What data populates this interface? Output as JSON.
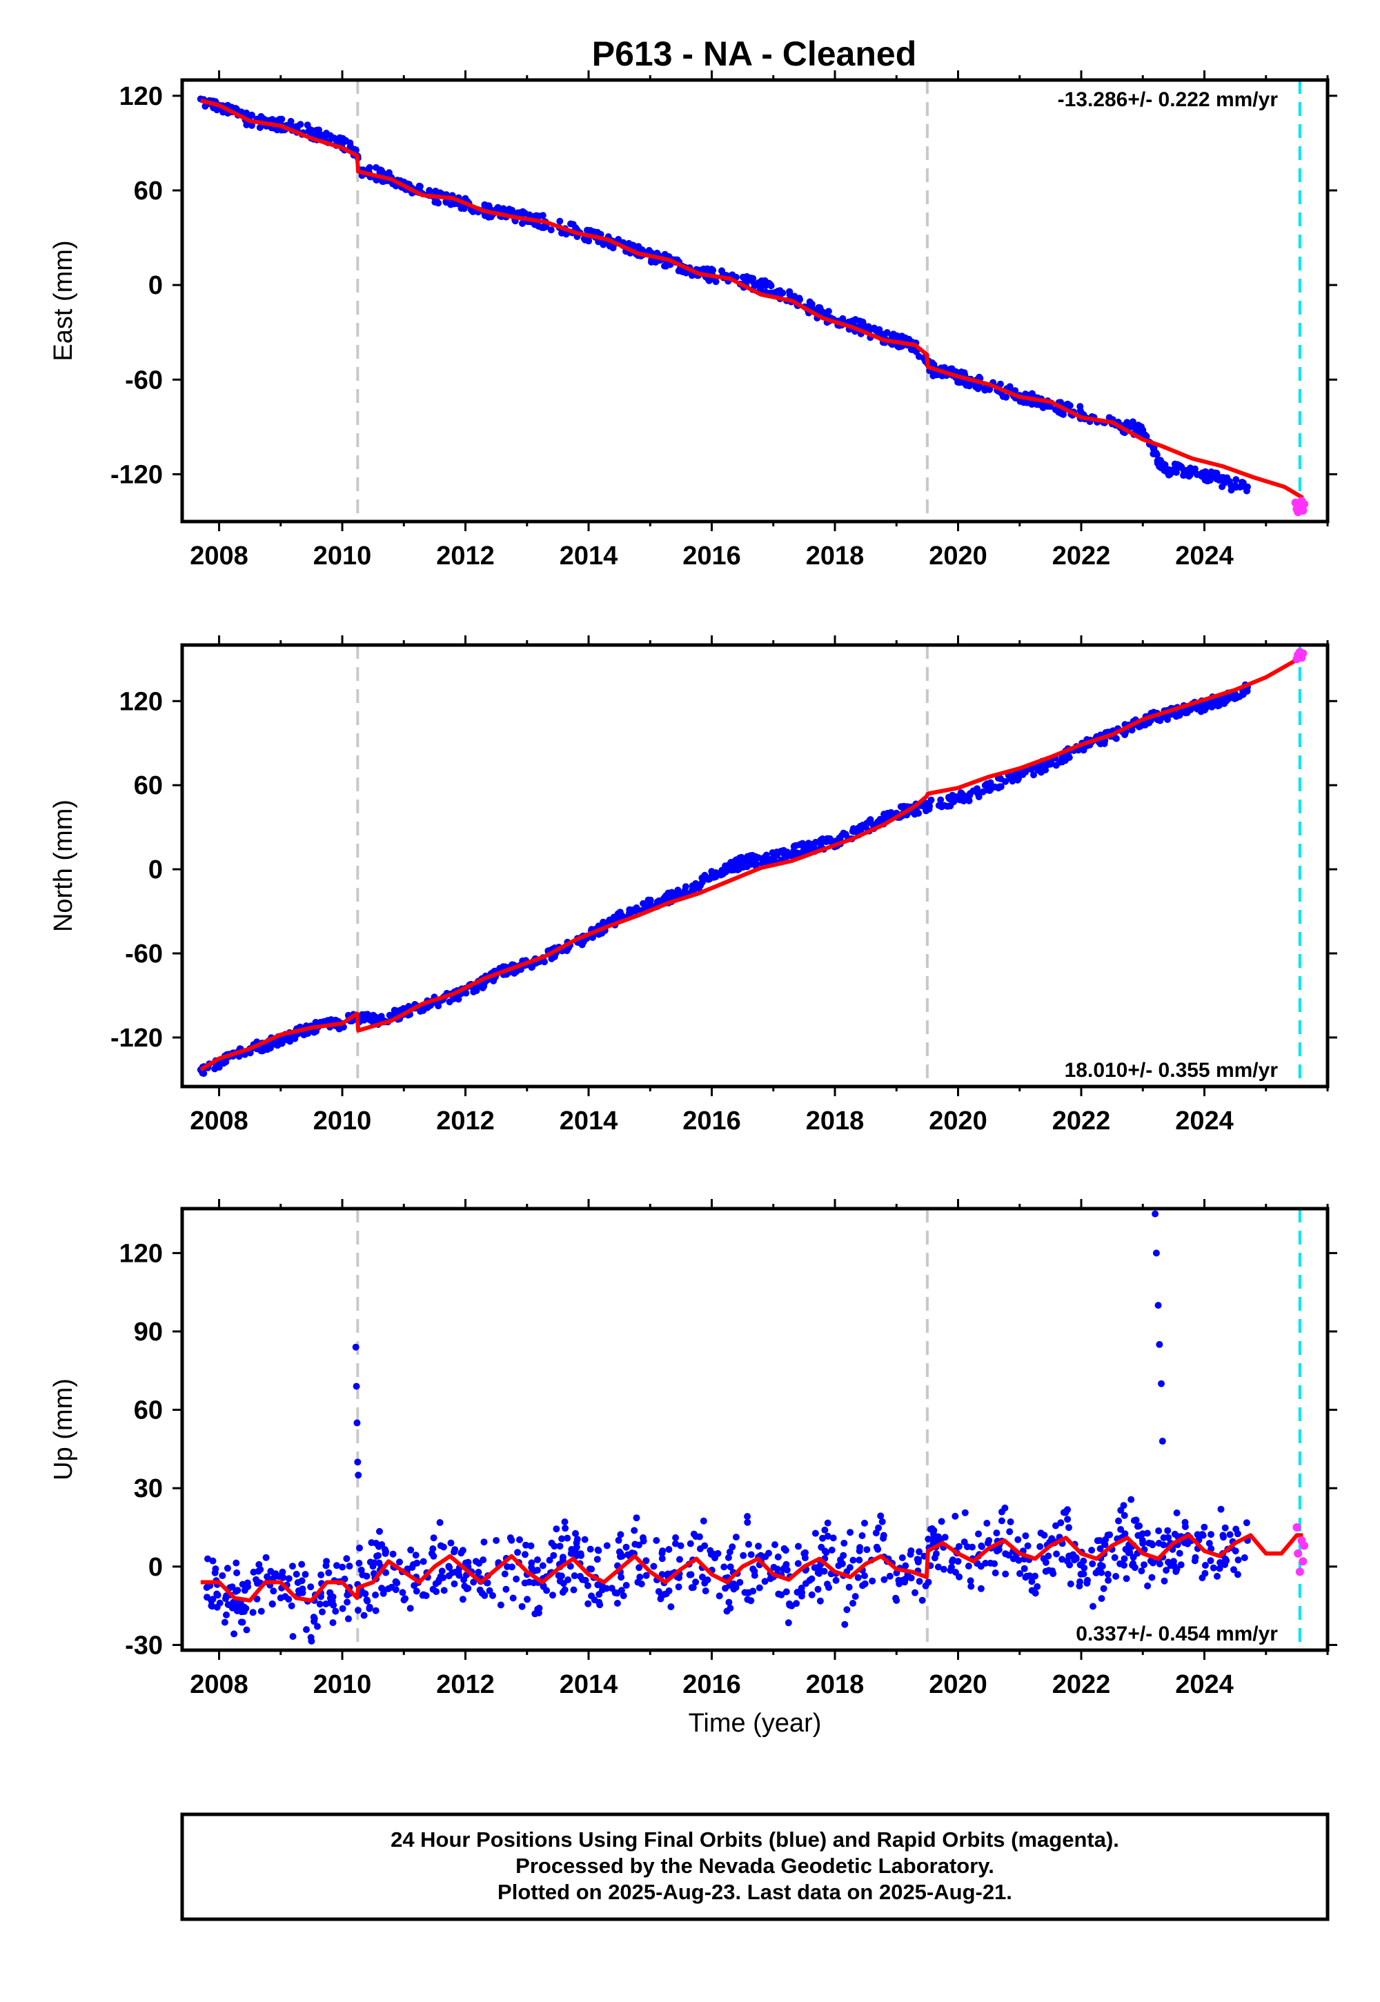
{
  "title": "P613  - NA - Cleaned",
  "colors": {
    "final_orbits": "#0000ff",
    "rapid_orbits": "#ff33ff",
    "model": "#ff0000",
    "equipment_change": "#c8c8c8",
    "last_data_marker": "#00e5ee"
  },
  "footer": {
    "line1": "24 Hour Positions Using Final Orbits (blue) and Rapid Orbits (magenta).",
    "line2": "Processed by the Nevada Geodetic Laboratory.",
    "line3": "Plotted on 2025-Aug-23. Last data on 2025-Aug-21."
  },
  "chart_data": [
    {
      "type": "scatter",
      "component": "east",
      "ylabel": "East (mm)",
      "xlabel": "",
      "rate": "-13.286+/- 0.222 mm/yr",
      "xlim": [
        2007.4,
        2026.0
      ],
      "ylim": [
        -150,
        130
      ],
      "xticks": [
        2008,
        2010,
        2012,
        2014,
        2016,
        2018,
        2020,
        2022,
        2024
      ],
      "yticks": [
        120,
        60,
        0,
        -60,
        -120
      ],
      "vlines_dashed_gray": [
        2010.25,
        2019.5
      ],
      "vline_dashed_cyan": 2025.55,
      "final_orbits_series": {
        "x": [
          2007.7,
          2007.9,
          2008.0,
          2008.2,
          2008.5,
          2009.0,
          2009.5,
          2010.0,
          2010.2,
          2010.3,
          2010.8,
          2011.3,
          2011.8,
          2012.3,
          2012.8,
          2013.3,
          2013.8,
          2014.3,
          2014.8,
          2015.3,
          2015.8,
          2016.3,
          2016.8,
          2017.3,
          2017.8,
          2018.3,
          2018.8,
          2019.3,
          2019.6,
          2020.0,
          2020.5,
          2021.0,
          2021.5,
          2022.0,
          2022.5,
          2023.0,
          2023.3,
          2023.5,
          2023.8,
          2024.2,
          2024.5,
          2024.7
        ],
        "y": [
          118,
          116,
          114,
          110,
          104,
          102,
          97,
          90,
          86,
          73,
          68,
          58,
          54,
          47,
          44,
          40,
          34,
          28,
          21,
          15,
          8,
          4,
          0,
          -8,
          -19,
          -25,
          -33,
          -38,
          -54,
          -58,
          -64,
          -70,
          -77,
          -81,
          -88,
          -92,
          -116,
          -117,
          -118,
          -123,
          -127,
          -128
        ]
      },
      "rapid_orbits_series": {
        "x": [
          2025.48,
          2025.5,
          2025.52,
          2025.55,
          2025.58,
          2025.6,
          2025.62
        ],
        "y": [
          -138,
          -142,
          -144,
          -140,
          -137,
          -143,
          -139
        ]
      },
      "model_series": {
        "x": [
          2007.7,
          2008.0,
          2008.5,
          2009.0,
          2009.5,
          2010.0,
          2010.24,
          2010.26,
          2010.8,
          2011.3,
          2011.8,
          2012.3,
          2012.8,
          2013.3,
          2013.8,
          2014.3,
          2014.8,
          2015.3,
          2015.8,
          2016.3,
          2016.8,
          2017.3,
          2017.8,
          2018.3,
          2018.8,
          2019.3,
          2019.49,
          2019.51,
          2020.0,
          2020.5,
          2021.0,
          2021.5,
          2022.0,
          2022.5,
          2023.0,
          2023.3,
          2023.8,
          2024.3,
          2024.8,
          2025.3,
          2025.6
        ],
        "y": [
          117,
          114,
          104,
          101,
          93,
          87,
          82,
          72,
          67,
          57,
          55,
          47,
          43,
          40,
          33,
          29,
          20,
          16,
          7,
          4,
          -6,
          -10,
          -21,
          -27,
          -35,
          -38,
          -44,
          -52,
          -58,
          -63,
          -71,
          -74,
          -84,
          -87,
          -98,
          -102,
          -110,
          -115,
          -122,
          -128,
          -135
        ]
      }
    },
    {
      "type": "scatter",
      "component": "north",
      "ylabel": "North (mm)",
      "xlabel": "",
      "rate": "18.010+/- 0.355 mm/yr",
      "xlim": [
        2007.4,
        2026.0
      ],
      "ylim": [
        -155,
        160
      ],
      "xticks": [
        2008,
        2010,
        2012,
        2014,
        2016,
        2018,
        2020,
        2022,
        2024
      ],
      "yticks": [
        120,
        60,
        0,
        -60,
        -120
      ],
      "vlines_dashed_gray": [
        2010.25,
        2019.5
      ],
      "vline_dashed_cyan": 2025.55,
      "final_orbits_series": {
        "x": [
          2007.7,
          2008.0,
          2008.5,
          2009.0,
          2009.5,
          2010.0,
          2010.2,
          2010.5,
          2011.0,
          2011.5,
          2012.0,
          2012.5,
          2013.0,
          2013.5,
          2014.0,
          2014.5,
          2015.0,
          2015.5,
          2016.0,
          2016.5,
          2017.0,
          2017.5,
          2018.0,
          2018.5,
          2019.0,
          2019.5,
          2020.0,
          2020.5,
          2021.0,
          2021.5,
          2022.0,
          2022.5,
          2023.0,
          2023.5,
          2024.0,
          2024.5,
          2024.7
        ],
        "y": [
          -143,
          -138,
          -128,
          -122,
          -113,
          -110,
          -105,
          -108,
          -103,
          -95,
          -88,
          -75,
          -68,
          -58,
          -48,
          -34,
          -25,
          -18,
          -5,
          5,
          8,
          15,
          20,
          30,
          40,
          45,
          50,
          58,
          68,
          75,
          88,
          95,
          106,
          112,
          117,
          125,
          130
        ]
      },
      "rapid_orbits_series": {
        "x": [
          2025.5,
          2025.52,
          2025.55,
          2025.58,
          2025.6
        ],
        "y": [
          150,
          153,
          155,
          151,
          154
        ]
      },
      "model_series": {
        "x": [
          2007.7,
          2008.0,
          2008.5,
          2009.0,
          2009.5,
          2010.0,
          2010.24,
          2010.26,
          2010.8,
          2011.3,
          2011.8,
          2012.3,
          2012.8,
          2013.3,
          2013.8,
          2014.3,
          2014.8,
          2015.3,
          2015.8,
          2016.3,
          2016.8,
          2017.3,
          2017.8,
          2018.3,
          2018.8,
          2019.3,
          2019.49,
          2019.51,
          2020.0,
          2020.5,
          2021.0,
          2021.5,
          2022.0,
          2022.5,
          2023.0,
          2023.5,
          2024.0,
          2024.5,
          2025.0,
          2025.6
        ],
        "y": [
          -143,
          -135,
          -128,
          -118,
          -113,
          -110,
          -103,
          -115,
          -108,
          -96,
          -89,
          -78,
          -70,
          -62,
          -50,
          -41,
          -33,
          -24,
          -17,
          -8,
          1,
          6,
          14,
          22,
          32,
          45,
          52,
          54,
          58,
          66,
          72,
          80,
          89,
          96,
          107,
          114,
          121,
          128,
          137,
          152
        ]
      }
    },
    {
      "type": "scatter",
      "component": "up",
      "ylabel": "Up (mm)",
      "xlabel": "Time (year)",
      "rate": "0.337+/- 0.454 mm/yr",
      "xlim": [
        2007.4,
        2026.0
      ],
      "ylim": [
        -32,
        137
      ],
      "xticks": [
        2008,
        2010,
        2012,
        2014,
        2016,
        2018,
        2020,
        2022,
        2024
      ],
      "yticks": [
        120,
        90,
        60,
        30,
        0,
        -30
      ],
      "vlines_dashed_gray": [
        2010.25,
        2019.5
      ],
      "vline_dashed_cyan": 2025.55,
      "final_orbits_series": {
        "x": [
          2007.8,
          2008.2,
          2008.6,
          2009.0,
          2009.4,
          2009.8,
          2010.1,
          2010.3,
          2010.7,
          2011.2,
          2011.6,
          2012.1,
          2012.5,
          2013.0,
          2013.4,
          2013.9,
          2014.3,
          2014.8,
          2015.2,
          2015.7,
          2016.1,
          2016.6,
          2017.0,
          2017.5,
          2017.9,
          2018.4,
          2018.8,
          2019.3,
          2019.6,
          2020.0,
          2020.5,
          2020.9,
          2021.4,
          2021.8,
          2022.3,
          2022.7,
          2023.1,
          2023.5,
          2023.9,
          2024.3,
          2024.7,
          2010.22,
          2010.23,
          2010.24,
          2010.25,
          2010.26,
          2023.2,
          2023.22,
          2023.25,
          2023.27,
          2023.3,
          2023.32
        ],
        "y": [
          -8,
          -15,
          -5,
          -12,
          -3,
          -10,
          -20,
          -8,
          5,
          -4,
          8,
          -2,
          10,
          -3,
          9,
          -5,
          8,
          -6,
          6,
          -8,
          5,
          -10,
          -4,
          5,
          -8,
          6,
          -5,
          -10,
          8,
          2,
          10,
          3,
          12,
          4,
          10,
          3,
          9,
          2,
          12,
          5,
          10,
          84,
          69,
          55,
          40,
          35,
          135,
          120,
          100,
          85,
          70,
          48
        ]
      },
      "rapid_orbits_series": {
        "x": [
          2025.5,
          2025.52,
          2025.55,
          2025.58,
          2025.6,
          2025.62
        ],
        "y": [
          15,
          5,
          -2,
          10,
          2,
          8
        ]
      },
      "model_series": {
        "x": [
          2007.7,
          2008.0,
          2008.25,
          2008.5,
          2008.75,
          2009.0,
          2009.25,
          2009.5,
          2009.75,
          2010.0,
          2010.24,
          2010.26,
          2010.5,
          2010.75,
          2011.0,
          2011.25,
          2011.5,
          2011.75,
          2012.0,
          2012.25,
          2012.5,
          2012.75,
          2013.0,
          2013.25,
          2013.5,
          2013.75,
          2014.0,
          2014.25,
          2014.5,
          2014.75,
          2015.0,
          2015.25,
          2015.5,
          2015.75,
          2016.0,
          2016.25,
          2016.5,
          2016.75,
          2017.0,
          2017.25,
          2017.5,
          2017.75,
          2018.0,
          2018.25,
          2018.5,
          2018.75,
          2019.0,
          2019.25,
          2019.49,
          2019.51,
          2019.75,
          2020.0,
          2020.25,
          2020.5,
          2020.75,
          2021.0,
          2021.25,
          2021.5,
          2021.75,
          2022.0,
          2022.25,
          2022.5,
          2022.75,
          2023.0,
          2023.25,
          2023.5,
          2023.75,
          2024.0,
          2024.25,
          2024.5,
          2024.75,
          2025.0,
          2025.25,
          2025.5,
          2025.6
        ],
        "y": [
          -6,
          -6,
          -12,
          -13,
          -6,
          -6,
          -12,
          -13,
          -6,
          -6,
          -12,
          -8,
          -6,
          2,
          -2,
          -6,
          0,
          4,
          -1,
          -6,
          -1,
          4,
          -2,
          -6,
          -1,
          3,
          -3,
          -6,
          -1,
          4,
          -2,
          -6,
          -1,
          3,
          -3,
          -6,
          0,
          3,
          -3,
          -5,
          0,
          3,
          -2,
          -4,
          1,
          4,
          -1,
          -2,
          -4,
          6,
          9,
          5,
          2,
          7,
          10,
          5,
          3,
          8,
          11,
          5,
          3,
          8,
          11,
          5,
          3,
          9,
          12,
          6,
          4,
          9,
          12,
          5,
          5,
          12,
          12
        ]
      }
    }
  ]
}
